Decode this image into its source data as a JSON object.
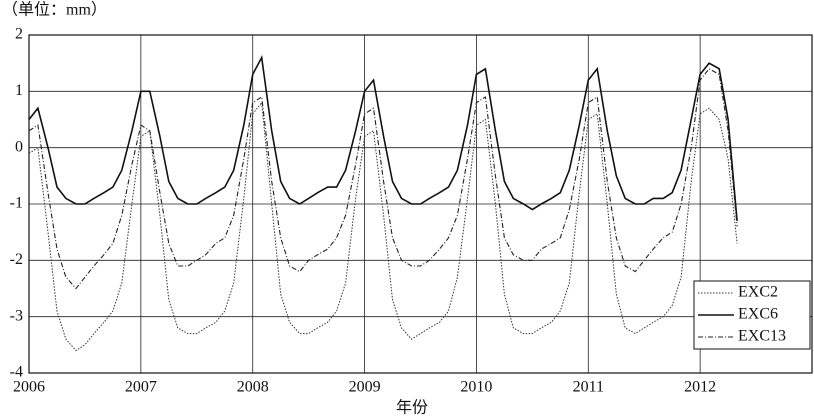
{
  "chart_data": {
    "type": "line",
    "unit_label": "（单位：mm）",
    "xlabel": "年份",
    "xlim": [
      2006,
      2013
    ],
    "xticks": [
      2006,
      2007,
      2008,
      2009,
      2010,
      2011,
      2012
    ],
    "ylim": [
      -4,
      2
    ],
    "yticks": [
      -4,
      -3,
      -2,
      -1,
      0,
      1,
      2
    ],
    "grid": true,
    "legend": "lower right",
    "x": [
      2006.0,
      2006.08,
      2006.17,
      2006.25,
      2006.33,
      2006.42,
      2006.5,
      2006.58,
      2006.67,
      2006.75,
      2006.83,
      2006.92,
      2007.0,
      2007.08,
      2007.17,
      2007.25,
      2007.33,
      2007.42,
      2007.5,
      2007.58,
      2007.67,
      2007.75,
      2007.83,
      2007.92,
      2008.0,
      2008.08,
      2008.17,
      2008.25,
      2008.33,
      2008.42,
      2008.5,
      2008.58,
      2008.67,
      2008.75,
      2008.83,
      2008.92,
      2009.0,
      2009.08,
      2009.17,
      2009.25,
      2009.33,
      2009.42,
      2009.5,
      2009.58,
      2009.67,
      2009.75,
      2009.83,
      2009.92,
      2010.0,
      2010.08,
      2010.17,
      2010.25,
      2010.33,
      2010.42,
      2010.5,
      2010.58,
      2010.67,
      2010.75,
      2010.83,
      2010.92,
      2011.0,
      2011.08,
      2011.17,
      2011.25,
      2011.33,
      2011.42,
      2011.5,
      2011.58,
      2011.67,
      2011.75,
      2011.83,
      2011.92,
      2012.0,
      2012.08,
      2012.17,
      2012.25,
      2012.33
    ],
    "series": [
      {
        "name": "EXC2",
        "color": "#333333",
        "line_style": "dotted",
        "values": [
          -0.1,
          0.0,
          -1.5,
          -2.9,
          -3.4,
          -3.6,
          -3.5,
          -3.3,
          -3.1,
          -2.9,
          -2.4,
          -1.0,
          0.2,
          0.3,
          -1.2,
          -2.7,
          -3.2,
          -3.3,
          -3.3,
          -3.2,
          -3.1,
          -2.9,
          -2.4,
          -0.9,
          0.6,
          0.8,
          -1.0,
          -2.6,
          -3.1,
          -3.3,
          -3.3,
          -3.2,
          -3.1,
          -2.9,
          -2.4,
          -0.9,
          0.2,
          0.3,
          -1.2,
          -2.7,
          -3.2,
          -3.4,
          -3.3,
          -3.2,
          -3.1,
          -2.9,
          -2.3,
          -0.9,
          0.4,
          0.5,
          -1.0,
          -2.6,
          -3.2,
          -3.3,
          -3.3,
          -3.2,
          -3.1,
          -2.9,
          -2.4,
          -0.8,
          0.5,
          0.6,
          -1.0,
          -2.6,
          -3.2,
          -3.3,
          -3.2,
          -3.1,
          -3.0,
          -2.8,
          -2.3,
          -0.6,
          0.6,
          0.7,
          0.5,
          -0.2,
          -1.7
        ]
      },
      {
        "name": "EXC6",
        "color": "#111111",
        "line_style": "solid",
        "values": [
          0.5,
          0.7,
          0.0,
          -0.7,
          -0.9,
          -1.0,
          -1.0,
          -0.9,
          -0.8,
          -0.7,
          -0.4,
          0.3,
          1.0,
          1.0,
          0.2,
          -0.6,
          -0.9,
          -1.0,
          -1.0,
          -0.9,
          -0.8,
          -0.7,
          -0.4,
          0.4,
          1.3,
          1.6,
          0.3,
          -0.6,
          -0.9,
          -1.0,
          -0.9,
          -0.8,
          -0.7,
          -0.7,
          -0.4,
          0.3,
          1.0,
          1.2,
          0.2,
          -0.6,
          -0.9,
          -1.0,
          -1.0,
          -0.9,
          -0.8,
          -0.7,
          -0.4,
          0.4,
          1.3,
          1.4,
          0.3,
          -0.6,
          -0.9,
          -1.0,
          -1.1,
          -1.0,
          -0.9,
          -0.8,
          -0.4,
          0.4,
          1.2,
          1.4,
          0.3,
          -0.5,
          -0.9,
          -1.0,
          -1.0,
          -0.9,
          -0.9,
          -0.8,
          -0.4,
          0.5,
          1.3,
          1.5,
          1.4,
          0.5,
          -1.3
        ]
      },
      {
        "name": "EXC13",
        "color": "#222222",
        "line_style": "dashdot",
        "values": [
          0.3,
          0.4,
          -0.8,
          -1.8,
          -2.3,
          -2.5,
          -2.3,
          -2.1,
          -1.9,
          -1.7,
          -1.2,
          -0.3,
          0.4,
          0.3,
          -0.8,
          -1.7,
          -2.1,
          -2.1,
          -2.0,
          -1.9,
          -1.7,
          -1.6,
          -1.2,
          -0.2,
          0.8,
          0.9,
          -0.6,
          -1.6,
          -2.1,
          -2.2,
          -2.0,
          -1.9,
          -1.8,
          -1.6,
          -1.2,
          -0.3,
          0.6,
          0.7,
          -0.6,
          -1.6,
          -2.0,
          -2.1,
          -2.1,
          -2.0,
          -1.8,
          -1.6,
          -1.2,
          -0.2,
          0.8,
          0.9,
          -0.5,
          -1.6,
          -1.9,
          -2.0,
          -2.0,
          -1.8,
          -1.7,
          -1.6,
          -1.1,
          -0.2,
          0.8,
          0.9,
          -0.6,
          -1.6,
          -2.1,
          -2.2,
          -2.0,
          -1.8,
          -1.6,
          -1.5,
          -1.0,
          0.0,
          1.2,
          1.4,
          1.3,
          0.3,
          -1.4
        ]
      }
    ]
  }
}
